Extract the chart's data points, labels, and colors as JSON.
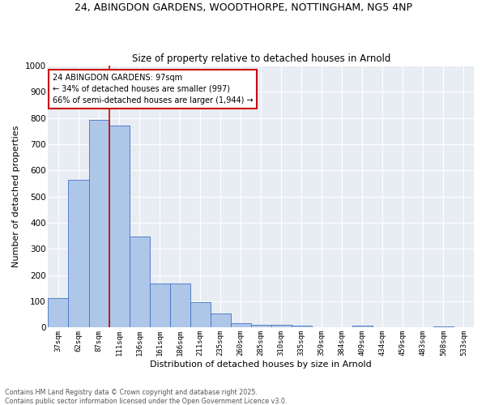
{
  "title_line1": "24, ABINGDON GARDENS, WOODTHORPE, NOTTINGHAM, NG5 4NP",
  "title_line2": "Size of property relative to detached houses in Arnold",
  "xlabel": "Distribution of detached houses by size in Arnold",
  "ylabel": "Number of detached properties",
  "categories": [
    "37sqm",
    "62sqm",
    "87sqm",
    "111sqm",
    "136sqm",
    "161sqm",
    "186sqm",
    "211sqm",
    "235sqm",
    "260sqm",
    "285sqm",
    "310sqm",
    "335sqm",
    "359sqm",
    "384sqm",
    "409sqm",
    "434sqm",
    "459sqm",
    "483sqm",
    "508sqm",
    "533sqm"
  ],
  "values": [
    112,
    565,
    793,
    770,
    348,
    168,
    168,
    97,
    53,
    18,
    12,
    12,
    9,
    0,
    0,
    8,
    0,
    0,
    0,
    5,
    0
  ],
  "bar_color": "#aec6e8",
  "bar_edge_color": "#4472c4",
  "background_color": "#e8edf4",
  "grid_color": "#ffffff",
  "vline_color": "#cc0000",
  "annotation_text": "24 ABINGDON GARDENS: 97sqm\n← 34% of detached houses are smaller (997)\n66% of semi-detached houses are larger (1,944) →",
  "annotation_box_color": "#cc0000",
  "ylim": [
    0,
    1000
  ],
  "yticks": [
    0,
    100,
    200,
    300,
    400,
    500,
    600,
    700,
    800,
    900,
    1000
  ],
  "footer_line1": "Contains HM Land Registry data © Crown copyright and database right 2025.",
  "footer_line2": "Contains public sector information licensed under the Open Government Licence v3.0."
}
